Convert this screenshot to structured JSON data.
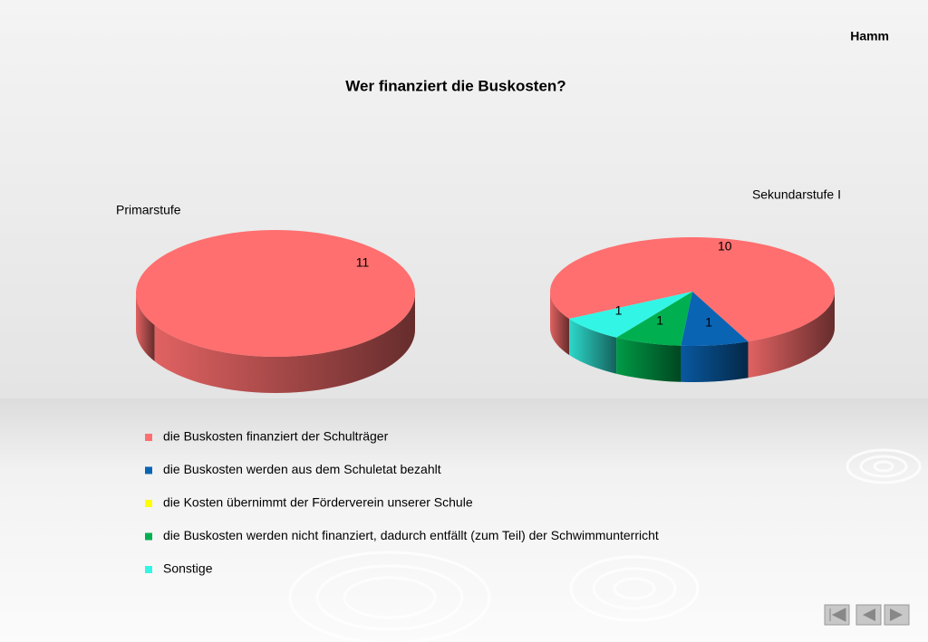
{
  "header": "Hamm",
  "title": "Wer finanziert die Buskosten?",
  "categories": [
    "die Buskosten finanziert der Schulträger",
    "die Buskosten werden aus dem Schuletat bezahlt",
    "die Kosten übernimmt der Förderverein unserer Schule",
    "die Buskosten werden nicht finanziert, dadurch entfällt (zum Teil) der Schwimmunterricht",
    "Sonstige"
  ],
  "colors": [
    "#ff6f6f",
    "#0a64b4",
    "#ffff00",
    "#00b050",
    "#33f5e6"
  ],
  "chart_data": [
    {
      "type": "pie",
      "title": "Primarstufe",
      "values": [
        11,
        0,
        0,
        0,
        0
      ]
    },
    {
      "type": "pie",
      "title": "Sekundarstufe I",
      "values": [
        10,
        1,
        0,
        1,
        1
      ]
    }
  ]
}
